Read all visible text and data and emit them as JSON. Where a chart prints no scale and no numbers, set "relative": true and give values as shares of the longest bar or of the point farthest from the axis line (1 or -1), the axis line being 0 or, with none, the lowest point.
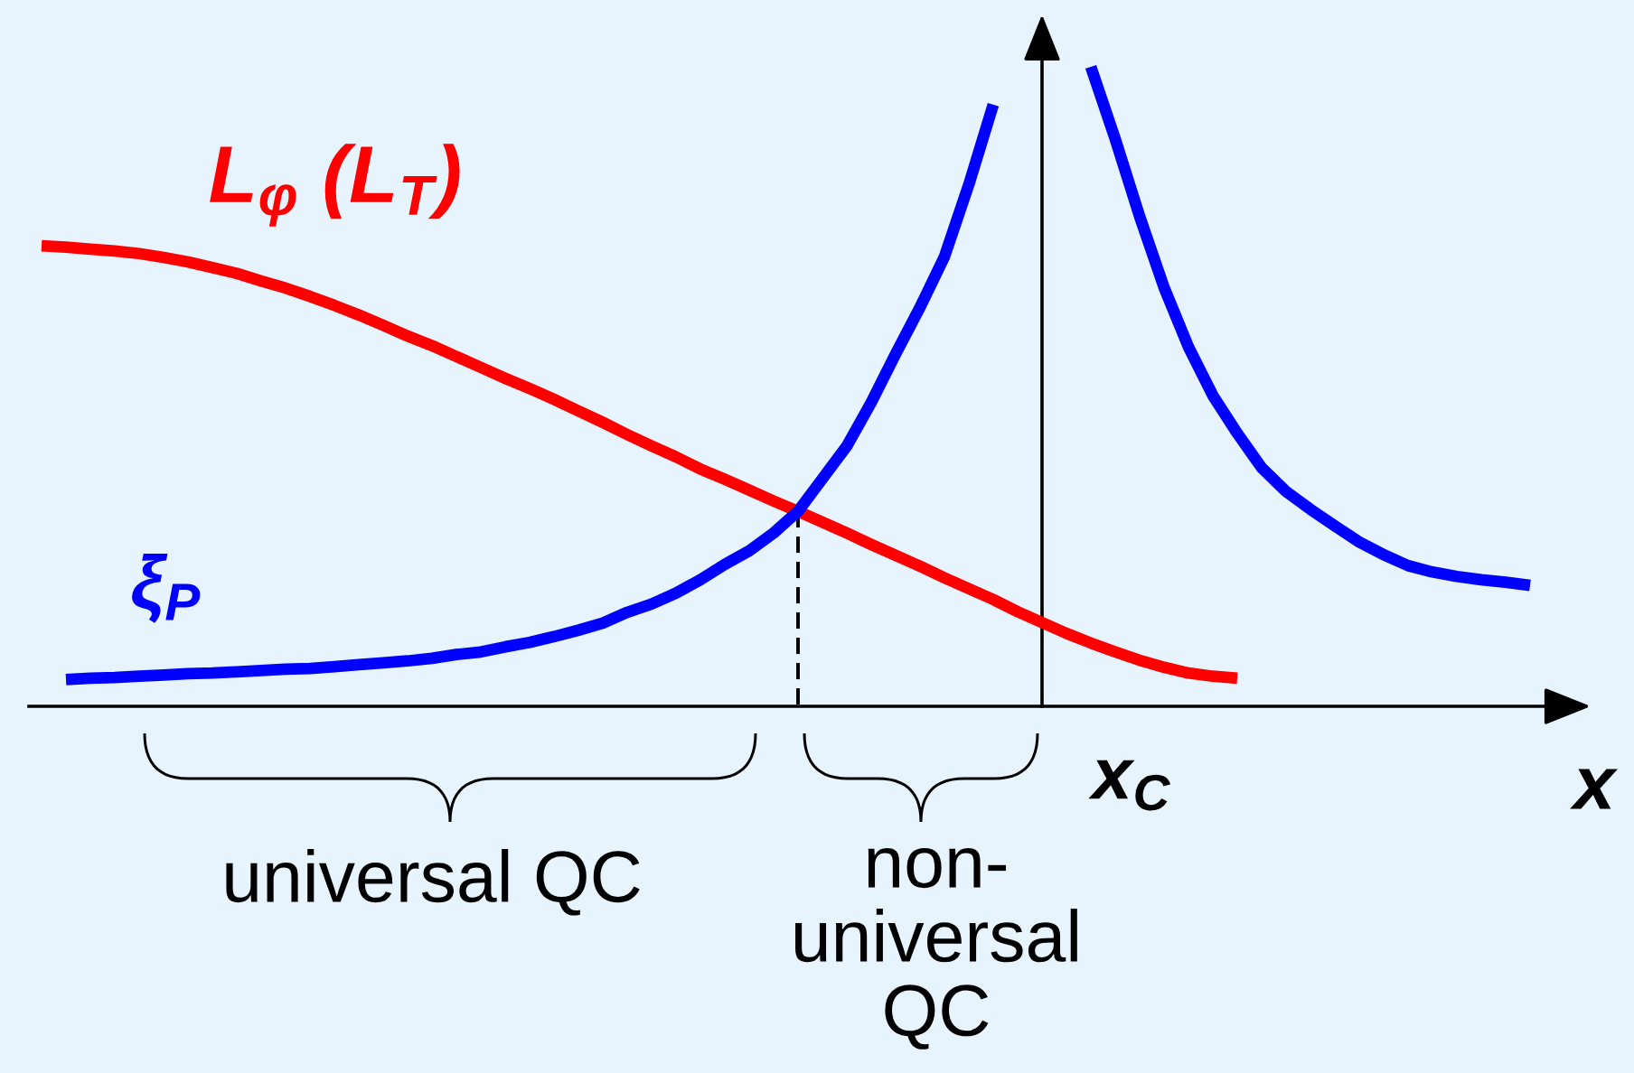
{
  "chart_data": {
    "type": "line",
    "relative": true,
    "xlabel": "x",
    "categories": [
      null,
      null,
      null,
      null,
      null,
      null,
      null,
      null,
      null,
      null,
      null,
      null,
      null,
      null,
      null,
      null,
      null,
      null,
      null,
      null,
      null,
      null,
      null,
      null,
      null,
      null,
      null,
      null,
      null,
      null,
      null,
      null,
      null,
      null,
      null,
      null,
      null,
      null,
      null,
      null,
      null,
      null,
      null,
      null,
      null,
      null,
      null,
      null,
      null,
      null,
      null,
      null,
      null,
      null,
      null,
      null,
      null,
      null,
      null,
      null,
      null,
      null
    ],
    "series": [
      {
        "name": "L$_{φ}$ (L$_{T}$)",
        "color": "#ff0000",
        "values": [
          0.72,
          0.718,
          0.715,
          0.712,
          0.708,
          0.702,
          0.695,
          0.686,
          0.677,
          0.665,
          0.654,
          0.641,
          0.627,
          0.612,
          0.596,
          0.579,
          0.564,
          0.547,
          0.53,
          0.513,
          0.497,
          0.48,
          0.462,
          0.444,
          0.425,
          0.407,
          0.39,
          0.371,
          0.355,
          0.338,
          0.321,
          0.305,
          0.288,
          0.271,
          0.253,
          0.236,
          0.219,
          0.201,
          0.184,
          0.167,
          0.148,
          0.131,
          0.114,
          0.099,
          0.085,
          0.072,
          0.061,
          0.052,
          0.047,
          0.044,
          null,
          null,
          null,
          null,
          null,
          null,
          null,
          null,
          null,
          null,
          null,
          null
        ]
      },
      {
        "name": "ξ$_{P}$",
        "color": "#0000ff",
        "values": [
          null,
          0.042,
          0.044,
          0.045,
          0.047,
          0.049,
          0.051,
          0.052,
          0.054,
          0.056,
          0.058,
          0.059,
          0.062,
          0.065,
          0.068,
          0.071,
          0.075,
          0.081,
          0.085,
          0.093,
          0.1,
          0.109,
          0.119,
          0.13,
          0.147,
          0.16,
          0.177,
          0.198,
          0.222,
          0.243,
          0.271,
          0.305,
          0.356,
          0.407,
          0.475,
          0.551,
          0.624,
          0.703,
          0.816,
          0.941,
          null,
          null,
          null,
          1.0,
          0.887,
          0.766,
          0.655,
          0.562,
          0.486,
          0.427,
          0.373,
          0.336,
          0.308,
          0.282,
          0.257,
          0.237,
          0.22,
          0.21,
          0.203,
          0.198,
          0.194,
          0.189
        ]
      }
    ],
    "annotations": [
      "x$_{C}$",
      "universal QC",
      "non-\nuniversal\nQC"
    ]
  }
}
